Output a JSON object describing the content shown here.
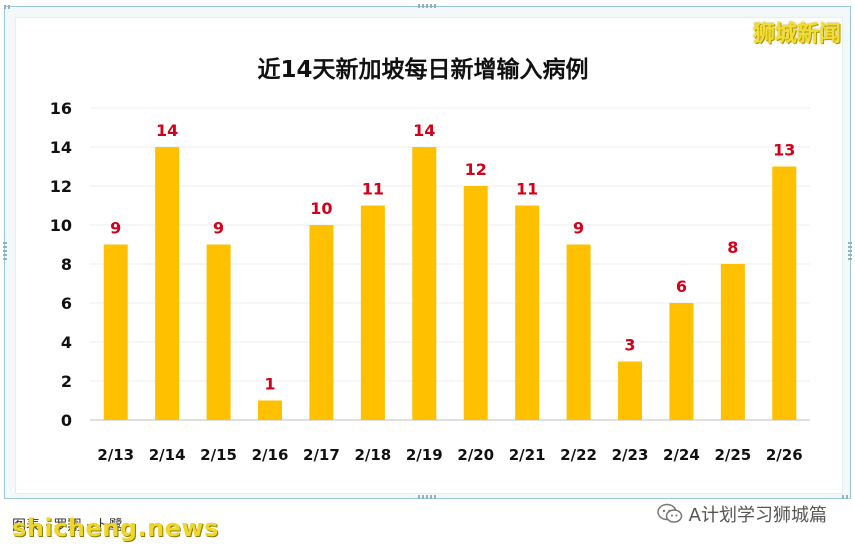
{
  "watermark": "狮城新闻",
  "footer": {
    "caption": "图表 · 罗翔 · 卜鹭",
    "site": "shicheng.news",
    "account": "A计划学习狮城篇"
  },
  "icons": {
    "account_icon": "wechat-icon"
  },
  "colors": {
    "bar": "#FFC000",
    "label": "#D0021B",
    "frame": "#9cc7d6"
  },
  "chart_data": {
    "type": "bar",
    "title": "近14天新加坡每日新增输入病例",
    "xlabel": "",
    "ylabel": "",
    "categories": [
      "2/13",
      "2/14",
      "2/15",
      "2/16",
      "2/17",
      "2/18",
      "2/19",
      "2/20",
      "2/21",
      "2/22",
      "2/23",
      "2/24",
      "2/25",
      "2/26"
    ],
    "values": [
      9,
      14,
      9,
      1,
      10,
      11,
      14,
      12,
      11,
      9,
      3,
      6,
      8,
      13
    ],
    "ylim": [
      0,
      16
    ],
    "yticks": [
      0,
      2,
      4,
      6,
      8,
      10,
      12,
      14,
      16
    ],
    "grid": true,
    "data_labels": true
  }
}
